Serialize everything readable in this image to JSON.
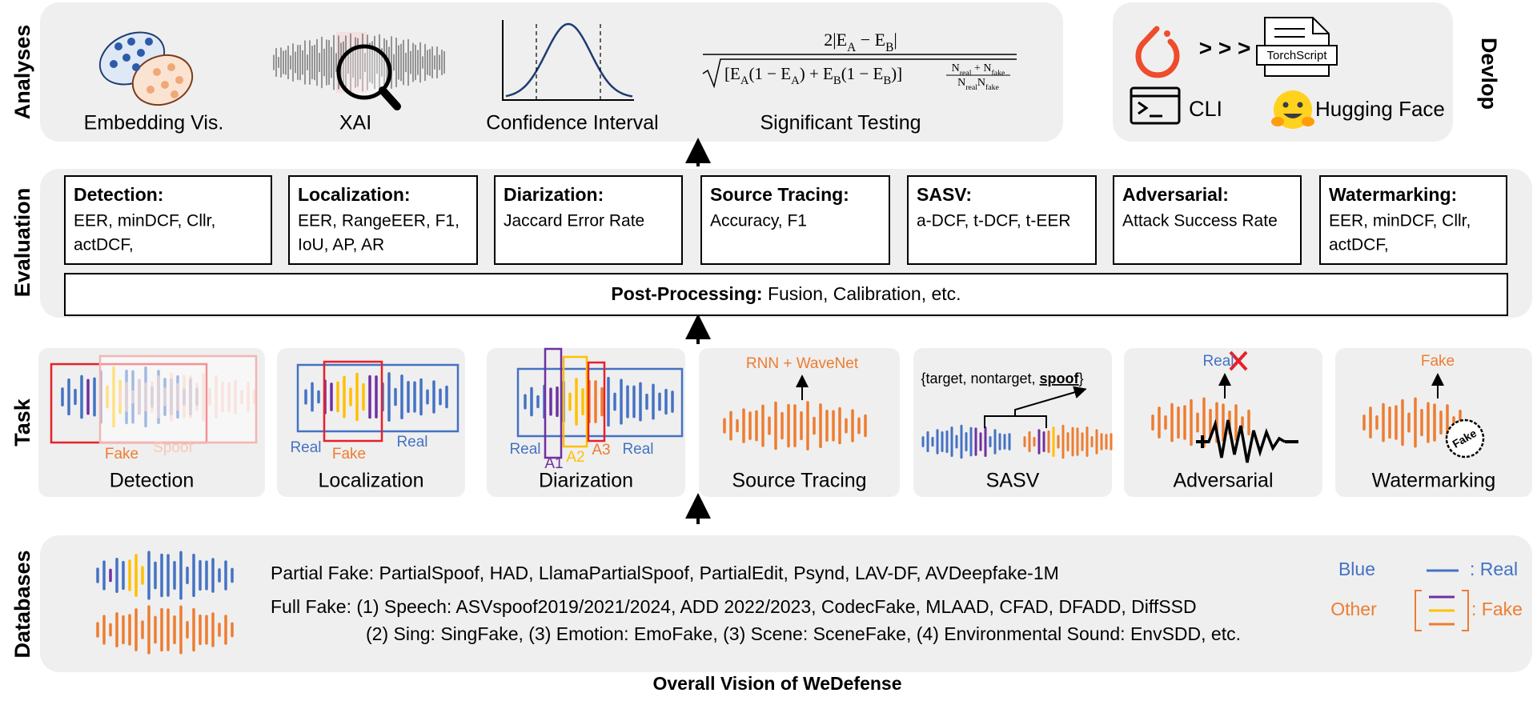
{
  "sections": {
    "analyses": "Analyses",
    "evaluation": "Evaluation",
    "task": "Task",
    "databases": "Databases",
    "develop": "Devlop"
  },
  "analyses": {
    "items": [
      "Embedding Vis.",
      "XAI",
      "Confidence Interval",
      "Significant Testing"
    ],
    "formula": {
      "numerator": [
        "2|E",
        "A",
        " − E",
        "B",
        "|"
      ],
      "root": [
        "[E",
        "A",
        "(1 − E",
        "A",
        ") + E",
        "B",
        "(1 − E",
        "B",
        ")]"
      ],
      "frac_num": [
        "N",
        "real",
        " + N",
        "fake"
      ],
      "frac_den": [
        "N",
        "real",
        "N",
        "fake"
      ]
    }
  },
  "develop": {
    "chevrons": "> > >",
    "torchscript": "TorchScript",
    "cli": "CLI",
    "hugging_face": "Hugging Face"
  },
  "evaluation": {
    "boxes": [
      {
        "title": "Detection:",
        "metrics": [
          "EER, minDCF, Cllr,",
          "actDCF,"
        ]
      },
      {
        "title": "Localization:",
        "metrics": [
          "EER, RangeEER, F1,",
          "IoU, AP, AR"
        ]
      },
      {
        "title": "Diarization:",
        "metrics": [
          "Jaccard Error Rate"
        ]
      },
      {
        "title": "Source Tracing:",
        "metrics": [
          "Accuracy, F1"
        ]
      },
      {
        "title": "SASV:",
        "metrics": [
          "a-DCF, t-DCF, t-EER"
        ]
      },
      {
        "title": "Adversarial:",
        "metrics": [
          "Attack Success Rate"
        ]
      },
      {
        "title": "Watermarking:",
        "metrics": [
          "EER, minDCF, Cllr,",
          "actDCF,"
        ]
      }
    ],
    "post_processing": {
      "label": "Post-Processing:",
      "text": " Fusion, Calibration, etc."
    }
  },
  "task": {
    "panels": [
      {
        "name": "Detection",
        "labels": [
          "Fake",
          "Spoof"
        ]
      },
      {
        "name": "Localization",
        "labels": [
          "Real",
          "Fake",
          "Real"
        ]
      },
      {
        "name": "Diarization",
        "labels": [
          "Real",
          "A1",
          "A2",
          "A3",
          "Real"
        ]
      },
      {
        "name": "Source Tracing",
        "labels": [
          "RNN + WaveNet"
        ]
      },
      {
        "name": "SASV",
        "labels": [
          "{target, nontarget, ",
          "spoof",
          "}"
        ]
      },
      {
        "name": "Adversarial",
        "labels": [
          "Real"
        ]
      },
      {
        "name": "Watermarking",
        "labels": [
          "Fake",
          "Fake"
        ]
      }
    ]
  },
  "databases": {
    "partial": "Partial Fake: PartialSpoof, HAD, LlamaPartialSpoof, PartialEdit, Psynd, LAV-DF, AVDeepfake-1M",
    "full": [
      "Full Fake: (1) Speech: ASVspoof2019/2021/2024, ADD 2022/2023, CodecFake, MLAAD, CFAD, DFADD, DiffSSD",
      "(2) Sing: SingFake, (3) Emotion: EmoFake, (3) Scene: SceneFake, (4) Environmental Sound: EnvSDD, etc."
    ],
    "legend": {
      "blue": "Blue",
      "real": ": Real",
      "other": "Other",
      "fake": ": Fake"
    }
  },
  "caption": "Overall Vision of WeDefense"
}
